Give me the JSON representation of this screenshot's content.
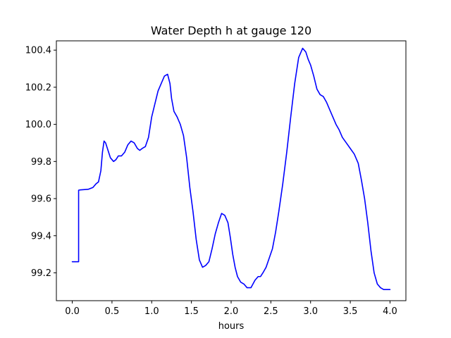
{
  "chart_data": {
    "type": "line",
    "title": "Water Depth h at gauge 120",
    "xlabel": "hours",
    "ylabel": "",
    "xlim": [
      -0.2,
      4.2
    ],
    "ylim": [
      99.05,
      100.45
    ],
    "xticks": [
      0.0,
      0.5,
      1.0,
      1.5,
      2.0,
      2.5,
      3.0,
      3.5,
      4.0
    ],
    "xtick_labels": [
      "0.0",
      "0.5",
      "1.0",
      "1.5",
      "2.0",
      "2.5",
      "3.0",
      "3.5",
      "4.0"
    ],
    "yticks": [
      99.2,
      99.4,
      99.6,
      99.8,
      100.0,
      100.2,
      100.4
    ],
    "ytick_labels": [
      "99.2",
      "99.4",
      "99.6",
      "99.8",
      "100.0",
      "100.2",
      "100.4"
    ],
    "grid": false,
    "series": [
      {
        "color": "#0000ff",
        "x": [
          0.0,
          0.08,
          0.08,
          0.1,
          0.2,
          0.26,
          0.3,
          0.33,
          0.36,
          0.38,
          0.4,
          0.42,
          0.45,
          0.48,
          0.52,
          0.55,
          0.58,
          0.62,
          0.66,
          0.7,
          0.74,
          0.78,
          0.82,
          0.85,
          0.88,
          0.92,
          0.96,
          1.0,
          1.04,
          1.08,
          1.12,
          1.16,
          1.2,
          1.23,
          1.25,
          1.28,
          1.32,
          1.36,
          1.4,
          1.44,
          1.48,
          1.52,
          1.56,
          1.6,
          1.64,
          1.68,
          1.72,
          1.76,
          1.8,
          1.84,
          1.88,
          1.92,
          1.96,
          1.99,
          2.02,
          2.05,
          2.08,
          2.12,
          2.16,
          2.2,
          2.25,
          2.3,
          2.34,
          2.37,
          2.4,
          2.44,
          2.48,
          2.52,
          2.56,
          2.6,
          2.65,
          2.7,
          2.75,
          2.8,
          2.85,
          2.9,
          2.94,
          2.97,
          3.0,
          3.04,
          3.08,
          3.12,
          3.16,
          3.2,
          3.24,
          3.28,
          3.32,
          3.36,
          3.4,
          3.45,
          3.5,
          3.55,
          3.6,
          3.64,
          3.68,
          3.72,
          3.76,
          3.8,
          3.84,
          3.88,
          3.92,
          3.96,
          4.0
        ],
        "y": [
          99.26,
          99.26,
          99.645,
          99.647,
          99.65,
          99.66,
          99.68,
          99.69,
          99.75,
          99.85,
          99.91,
          99.9,
          99.86,
          99.82,
          99.8,
          99.81,
          99.83,
          99.83,
          99.85,
          99.89,
          99.91,
          99.9,
          99.87,
          99.86,
          99.87,
          99.88,
          99.93,
          100.04,
          100.11,
          100.18,
          100.22,
          100.26,
          100.27,
          100.22,
          100.14,
          100.07,
          100.04,
          100.0,
          99.94,
          99.82,
          99.66,
          99.53,
          99.38,
          99.27,
          99.23,
          99.24,
          99.26,
          99.33,
          99.41,
          99.47,
          99.52,
          99.51,
          99.47,
          99.39,
          99.3,
          99.23,
          99.18,
          99.15,
          99.14,
          99.12,
          99.12,
          99.16,
          99.18,
          99.18,
          99.2,
          99.23,
          99.28,
          99.33,
          99.42,
          99.53,
          99.68,
          99.85,
          100.04,
          100.22,
          100.36,
          100.41,
          100.39,
          100.35,
          100.32,
          100.26,
          100.19,
          100.16,
          100.15,
          100.12,
          100.08,
          100.04,
          100.0,
          99.97,
          99.93,
          99.9,
          99.87,
          99.84,
          99.79,
          99.7,
          99.6,
          99.47,
          99.32,
          99.2,
          99.14,
          99.12,
          99.11,
          99.11,
          99.11
        ]
      }
    ]
  }
}
